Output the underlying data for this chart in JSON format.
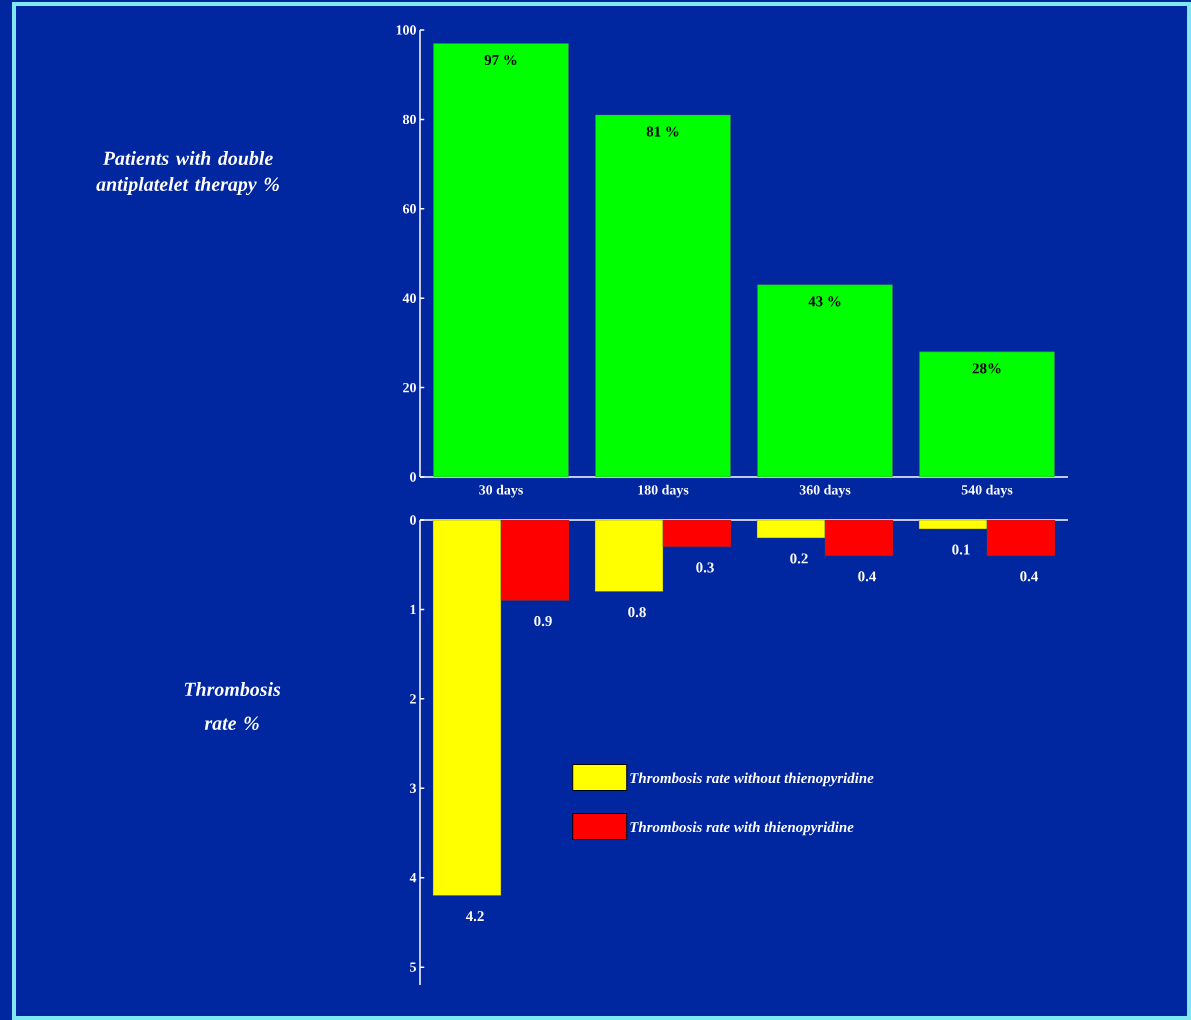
{
  "chart_data": [
    {
      "type": "bar",
      "categories": [
        "30 days",
        "180 days",
        "360 days",
        "540 days"
      ],
      "values": [
        97,
        81,
        43,
        28
      ],
      "color": "#00ff00",
      "ylim": [
        0,
        100
      ],
      "yticks": [
        0,
        20,
        40,
        60,
        80,
        100
      ],
      "ylabel": "Patients with double antiplatelet therapy %",
      "value_labels": [
        "97 %",
        "81 %",
        "43 %",
        "28%"
      ]
    },
    {
      "type": "bar",
      "categories": [
        null,
        null,
        null,
        null
      ],
      "ylim": [
        5.2,
        0
      ],
      "yticks": [
        0,
        1,
        2,
        3,
        4,
        5
      ],
      "ylabel": "Thrombosis rate %",
      "tick_labels": "y",
      "data_labels": true,
      "legend": "bottom right",
      "series": [
        {
          "name": "Thrombosis rate without thienopyridine",
          "color": "#ffff00",
          "values": [
            4.2,
            0.8,
            0.2,
            0.1
          ]
        },
        {
          "name": "Thrombosis rate with thienopyridine",
          "color": "#ff0000",
          "values": [
            0.9,
            0.3,
            0.4,
            0.4
          ]
        }
      ]
    }
  ]
}
